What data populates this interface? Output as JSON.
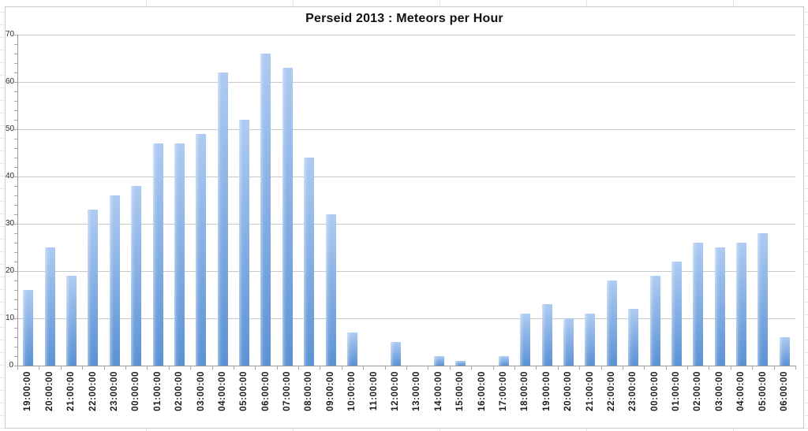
{
  "chart_data": {
    "type": "bar",
    "title": "Perseid 2013 : Meteors per Hour",
    "categories": [
      "19:00:00",
      "20:00:00",
      "21:00:00",
      "22:00:00",
      "23:00:00",
      "00:00:00",
      "01:00:00",
      "02:00:00",
      "03:00:00",
      "04:00:00",
      "05:00:00",
      "06:00:00",
      "07:00:00",
      "08:00:00",
      "09:00:00",
      "10:00:00",
      "11:00:00",
      "12:00:00",
      "13:00:00",
      "14:00:00",
      "15:00:00",
      "16:00:00",
      "17:00:00",
      "18:00:00",
      "19:00:00",
      "20:00:00",
      "21:00:00",
      "22:00:00",
      "23:00:00",
      "00:00:00",
      "01:00:00",
      "02:00:00",
      "03:00:00",
      "04:00:00",
      "05:00:00",
      "06:00:00"
    ],
    "values": [
      16,
      25,
      19,
      33,
      36,
      38,
      47,
      47,
      49,
      62,
      52,
      66,
      63,
      44,
      32,
      7,
      0,
      5,
      0,
      2,
      1,
      0,
      2,
      11,
      13,
      10,
      11,
      18,
      12,
      19,
      22,
      26,
      25,
      26,
      28,
      6
    ],
    "xlabel": "",
    "ylabel": "",
    "ylim": [
      0,
      70
    ],
    "yticks": [
      0,
      10,
      20,
      30,
      40,
      50,
      60,
      70
    ],
    "y_minor_tick_step": 2,
    "x_label_rotation_deg": 90,
    "grid": "horizontal-major",
    "legend": "none",
    "colors": {
      "bar_top": "#aecbf2",
      "bar_bottom": "#5b92d4",
      "gridline": "#c9c9c9",
      "axis_line": "#9b9b9b",
      "title_text": "#111111",
      "tick_label_text": "#1a1a1a",
      "chart_border": "#cccccc",
      "sheet_gridline": "#e7e7e7",
      "chart_background": "#ffffff"
    }
  }
}
